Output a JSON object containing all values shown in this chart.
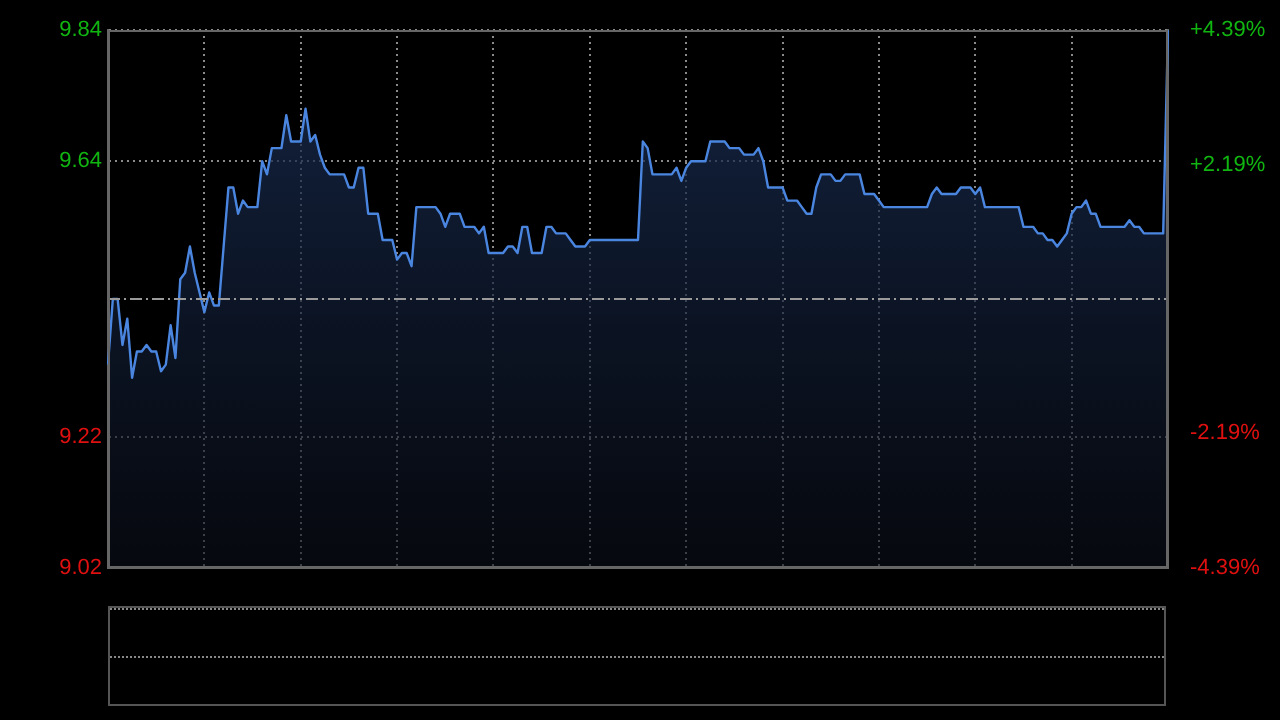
{
  "chart_data": {
    "type": "area",
    "tick_labels": "y",
    "grid": true,
    "legend": false,
    "marker": "none",
    "line_style": "solid",
    "categories": [
      null,
      null,
      null,
      null,
      null,
      null,
      null,
      null,
      null,
      null,
      null,
      null,
      null,
      null,
      null,
      null,
      null,
      null,
      null,
      null,
      null,
      null,
      null,
      null,
      null,
      null,
      null,
      null,
      null,
      null,
      null,
      null,
      null,
      null,
      null,
      null,
      null,
      null,
      null,
      null,
      null,
      null,
      null,
      null,
      null,
      null,
      null,
      null,
      null,
      null,
      null,
      null,
      null,
      null,
      null,
      null,
      null,
      null,
      null,
      null,
      null,
      null,
      null,
      null,
      null,
      null,
      null,
      null,
      null,
      null,
      null,
      null,
      null,
      null,
      null,
      null,
      null,
      null,
      null,
      null,
      null,
      null,
      null,
      null,
      null,
      null,
      null,
      null,
      null,
      null,
      null,
      null,
      null,
      null,
      null,
      null,
      null,
      null,
      null,
      null,
      null,
      null,
      null,
      null,
      null,
      null,
      null,
      null,
      null,
      null,
      null,
      null,
      null,
      null,
      null,
      null,
      null,
      null,
      null,
      null,
      null,
      null,
      null,
      null,
      null,
      null,
      null,
      null,
      null,
      null,
      null,
      null,
      null,
      null,
      null,
      null,
      null,
      null,
      null,
      null,
      null,
      null,
      null,
      null,
      null,
      null,
      null,
      null,
      null,
      null,
      null,
      null,
      null,
      null,
      null,
      null,
      null,
      null,
      null,
      null,
      null,
      null,
      null,
      null,
      null,
      null,
      null,
      null,
      null,
      null,
      null,
      null,
      null,
      null,
      null,
      null,
      null,
      null,
      null,
      null,
      null,
      null,
      null,
      null,
      null,
      null,
      null,
      null,
      null,
      null,
      null,
      null,
      null,
      null,
      null,
      null,
      null,
      null,
      null,
      null,
      null,
      null,
      null,
      null,
      null,
      null,
      null,
      null,
      null,
      null,
      null,
      null,
      null,
      null,
      null,
      null,
      null,
      null,
      null,
      null,
      null
    ],
    "ylim": [
      9.02,
      9.84
    ],
    "yticks": [
      9.02,
      9.22,
      9.64,
      9.84
    ],
    "y2lim": [
      -4.39,
      4.39
    ],
    "y2ticks": [
      {
        "value": -4.39,
        "label": "-4.39%"
      },
      {
        "value": -2.19,
        "label": "-2.19%"
      },
      {
        "value": 2.19,
        "label": "+2.19%"
      },
      {
        "value": 4.39,
        "label": "+4.39%"
      }
    ],
    "ref_lines": [
      {
        "axis": "y",
        "value": 9.43,
        "label": null,
        "color": "#9a9a9a",
        "line_style": "dashed"
      }
    ],
    "series": [
      {
        "color": "#4a86e0",
        "values": [
          9.33,
          9.43,
          9.43,
          9.36,
          9.4,
          9.31,
          9.35,
          9.35,
          9.36,
          9.35,
          9.35,
          9.32,
          9.33,
          9.39,
          9.34,
          9.46,
          9.47,
          9.51,
          9.47,
          9.44,
          9.41,
          9.44,
          9.42,
          9.42,
          9.51,
          9.6,
          9.6,
          9.56,
          9.58,
          9.57,
          9.57,
          9.57,
          9.64,
          9.62,
          9.66,
          9.66,
          9.66,
          9.71,
          9.67,
          9.67,
          9.67,
          9.72,
          9.67,
          9.68,
          9.65,
          9.63,
          9.62,
          9.62,
          9.62,
          9.62,
          9.6,
          9.6,
          9.63,
          9.63,
          9.56,
          9.56,
          9.56,
          9.52,
          9.52,
          9.52,
          9.49,
          9.5,
          9.5,
          9.48,
          9.57,
          9.57,
          9.57,
          9.57,
          9.57,
          9.56,
          9.54,
          9.56,
          9.56,
          9.56,
          9.54,
          9.54,
          9.54,
          9.53,
          9.54,
          9.5,
          9.5,
          9.5,
          9.5,
          9.51,
          9.51,
          9.5,
          9.54,
          9.54,
          9.5,
          9.5,
          9.5,
          9.54,
          9.54,
          9.53,
          9.53,
          9.53,
          9.52,
          9.51,
          9.51,
          9.51,
          9.52,
          9.52,
          9.52,
          9.52,
          9.52,
          9.52,
          9.52,
          9.52,
          9.52,
          9.52,
          9.52,
          9.67,
          9.66,
          9.62,
          9.62,
          9.62,
          9.62,
          9.62,
          9.63,
          9.61,
          9.63,
          9.64,
          9.64,
          9.64,
          9.64,
          9.67,
          9.67,
          9.67,
          9.67,
          9.66,
          9.66,
          9.66,
          9.65,
          9.65,
          9.65,
          9.66,
          9.64,
          9.6,
          9.6,
          9.6,
          9.6,
          9.58,
          9.58,
          9.58,
          9.57,
          9.56,
          9.56,
          9.6,
          9.62,
          9.62,
          9.62,
          9.61,
          9.61,
          9.62,
          9.62,
          9.62,
          9.62,
          9.59,
          9.59,
          9.59,
          9.58,
          9.57,
          9.57,
          9.57,
          9.57,
          9.57,
          9.57,
          9.57,
          9.57,
          9.57,
          9.57,
          9.59,
          9.6,
          9.59,
          9.59,
          9.59,
          9.59,
          9.6,
          9.6,
          9.6,
          9.59,
          9.6,
          9.57,
          9.57,
          9.57,
          9.57,
          9.57,
          9.57,
          9.57,
          9.57,
          9.54,
          9.54,
          9.54,
          9.53,
          9.53,
          9.52,
          9.52,
          9.51,
          9.52,
          9.53,
          9.56,
          9.57,
          9.57,
          9.58,
          9.56,
          9.56,
          9.54,
          9.54,
          9.54,
          9.54,
          9.54,
          9.54,
          9.55,
          9.54,
          9.54,
          9.53,
          9.53,
          9.53,
          9.53,
          9.53,
          9.84
        ]
      }
    ]
  }
}
